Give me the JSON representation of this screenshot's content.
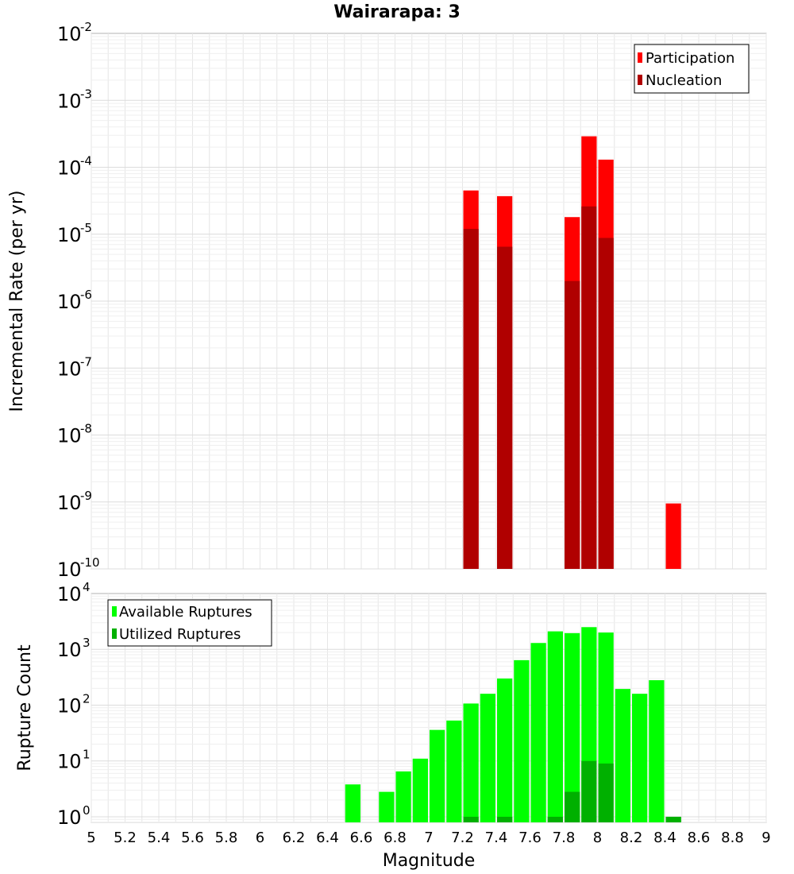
{
  "chart_data": [
    {
      "type": "bar",
      "title": "Wairarapa: 3",
      "xlabel": "",
      "ylabel": "Incremental Rate (per yr)",
      "xlim": [
        5,
        9
      ],
      "ylim_exp": [
        -10,
        -2
      ],
      "yscale": "log",
      "grid": true,
      "legend_position": "top-right",
      "y_ticks": [
        {
          "base": "10",
          "exp": "-2",
          "value": -2
        },
        {
          "base": "10",
          "exp": "-3",
          "value": -3
        },
        {
          "base": "10",
          "exp": "-4",
          "value": -4
        },
        {
          "base": "10",
          "exp": "-5",
          "value": -5
        },
        {
          "base": "10",
          "exp": "-6",
          "value": -6
        },
        {
          "base": "10",
          "exp": "-7",
          "value": -7
        },
        {
          "base": "10",
          "exp": "-8",
          "value": -8
        },
        {
          "base": "10",
          "exp": "-9",
          "value": -9
        },
        {
          "base": "10",
          "exp": "-10",
          "value": -10
        }
      ],
      "series": [
        {
          "name": "Participation",
          "color": "#ff0000",
          "points": [
            {
              "x": 7.25,
              "y": 4.5e-05
            },
            {
              "x": 7.45,
              "y": 3.7e-05
            },
            {
              "x": 7.85,
              "y": 1.8e-05
            },
            {
              "x": 7.95,
              "y": 0.00029
            },
            {
              "x": 8.05,
              "y": 0.00013
            },
            {
              "x": 8.45,
              "y": 9.5e-10
            }
          ]
        },
        {
          "name": "Nucleation",
          "color": "#b00000",
          "points": [
            {
              "x": 7.25,
              "y": 1.2e-05
            },
            {
              "x": 7.45,
              "y": 6.5e-06
            },
            {
              "x": 7.85,
              "y": 2e-06
            },
            {
              "x": 7.95,
              "y": 2.6e-05
            },
            {
              "x": 8.05,
              "y": 8.8e-06
            }
          ]
        }
      ]
    },
    {
      "type": "bar",
      "xlabel": "Magnitude",
      "ylabel": "Rupture Count",
      "xlim": [
        5,
        9
      ],
      "ylim_exp": [
        -0.1,
        4
      ],
      "yscale": "log",
      "grid": true,
      "legend_position": "top-left",
      "x_ticks": [
        "5",
        "5.2",
        "5.4",
        "5.6",
        "5.8",
        "6",
        "6.2",
        "6.4",
        "6.6",
        "6.8",
        "7",
        "7.2",
        "7.4",
        "7.6",
        "7.8",
        "8",
        "8.2",
        "8.4",
        "8.6",
        "8.8",
        "9"
      ],
      "y_ticks": [
        {
          "base": "10",
          "exp": "4",
          "value": 4
        },
        {
          "base": "10",
          "exp": "3",
          "value": 3
        },
        {
          "base": "10",
          "exp": "2",
          "value": 2
        },
        {
          "base": "10",
          "exp": "1",
          "value": 1
        },
        {
          "base": "10",
          "exp": "0",
          "value": 0
        }
      ],
      "series": [
        {
          "name": "Available Ruptures",
          "color": "#00ff00",
          "points": [
            {
              "x": 6.55,
              "y": 3.8
            },
            {
              "x": 6.75,
              "y": 2.8
            },
            {
              "x": 6.85,
              "y": 6.5
            },
            {
              "x": 6.95,
              "y": 11
            },
            {
              "x": 7.05,
              "y": 36
            },
            {
              "x": 7.15,
              "y": 53
            },
            {
              "x": 7.25,
              "y": 107
            },
            {
              "x": 7.35,
              "y": 160
            },
            {
              "x": 7.45,
              "y": 300
            },
            {
              "x": 7.55,
              "y": 640
            },
            {
              "x": 7.65,
              "y": 1300
            },
            {
              "x": 7.75,
              "y": 2100
            },
            {
              "x": 7.85,
              "y": 1950
            },
            {
              "x": 7.95,
              "y": 2500
            },
            {
              "x": 8.05,
              "y": 2000
            },
            {
              "x": 8.15,
              "y": 195
            },
            {
              "x": 8.25,
              "y": 160
            },
            {
              "x": 8.35,
              "y": 280
            },
            {
              "x": 8.45,
              "y": 1
            }
          ]
        },
        {
          "name": "Utilized Ruptures",
          "color": "#00b000",
          "points": [
            {
              "x": 7.25,
              "y": 1
            },
            {
              "x": 7.45,
              "y": 1
            },
            {
              "x": 7.75,
              "y": 1
            },
            {
              "x": 7.85,
              "y": 2.8
            },
            {
              "x": 7.95,
              "y": 10
            },
            {
              "x": 8.05,
              "y": 9
            },
            {
              "x": 8.45,
              "y": 1
            }
          ]
        }
      ]
    }
  ]
}
